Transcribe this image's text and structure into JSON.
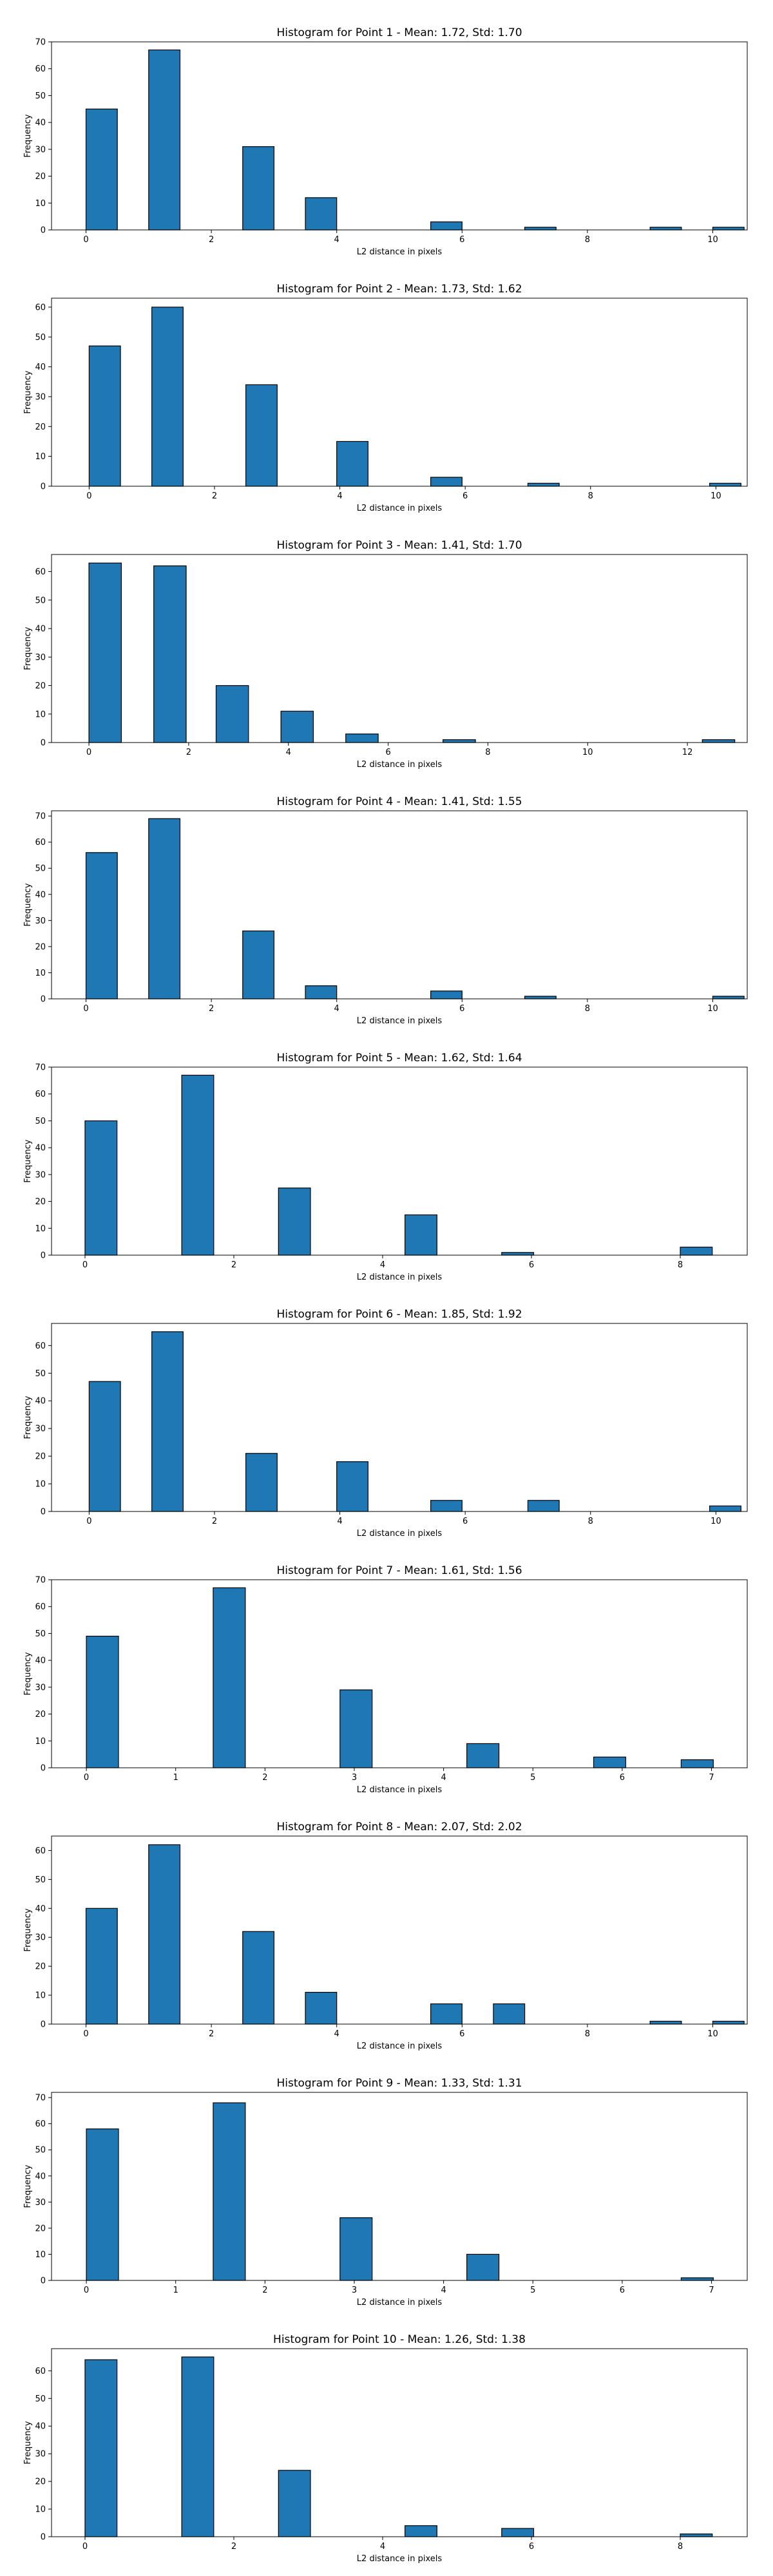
{
  "style": {
    "bar_color": "#1f77b4",
    "edge_color": "#000000",
    "background": "#ffffff"
  },
  "chart_data": [
    {
      "type": "bar",
      "title": "Histogram for Point 1 - Mean: 1.72, Std: 1.70",
      "xlabel": "L2 distance in pixels",
      "ylabel": "Frequency",
      "xlim": [
        -0.55,
        10.55
      ],
      "ylim": [
        0,
        70
      ],
      "xticks": [
        0,
        2,
        4,
        6,
        8,
        10
      ],
      "yticks": [
        0,
        10,
        20,
        30,
        40,
        50,
        60,
        70
      ],
      "grid": false,
      "bars": [
        {
          "x0": 0.0,
          "x1": 0.5,
          "value": 45
        },
        {
          "x0": 1.0,
          "x1": 1.5,
          "value": 67
        },
        {
          "x0": 2.5,
          "x1": 3.0,
          "value": 31
        },
        {
          "x0": 3.5,
          "x1": 4.0,
          "value": 12
        },
        {
          "x0": 5.5,
          "x1": 6.0,
          "value": 3
        },
        {
          "x0": 7.0,
          "x1": 7.5,
          "value": 1
        },
        {
          "x0": 9.0,
          "x1": 9.5,
          "value": 1
        },
        {
          "x0": 10.0,
          "x1": 10.5,
          "value": 1
        }
      ]
    },
    {
      "type": "bar",
      "title": "Histogram for Point 2 - Mean: 1.73, Std: 1.62",
      "xlabel": "L2 distance in pixels",
      "ylabel": "Frequency",
      "xlim": [
        -0.6,
        10.5
      ],
      "ylim": [
        0,
        63
      ],
      "xticks": [
        0,
        2,
        4,
        6,
        8,
        10
      ],
      "yticks": [
        0,
        10,
        20,
        30,
        40,
        50,
        60
      ],
      "grid": false,
      "bars": [
        {
          "x0": 0.0,
          "x1": 0.5,
          "value": 47
        },
        {
          "x0": 1.0,
          "x1": 1.5,
          "value": 60
        },
        {
          "x0": 2.5,
          "x1": 3.0,
          "value": 34
        },
        {
          "x0": 3.95,
          "x1": 4.45,
          "value": 15
        },
        {
          "x0": 5.45,
          "x1": 5.95,
          "value": 3
        },
        {
          "x0": 7.0,
          "x1": 7.5,
          "value": 1
        },
        {
          "x0": 9.9,
          "x1": 10.4,
          "value": 1
        }
      ]
    },
    {
      "type": "bar",
      "title": "Histogram for Point 3 - Mean: 1.41, Std: 1.70",
      "xlabel": "L2 distance in pixels",
      "ylabel": "Frequency",
      "xlim": [
        -0.75,
        13.2
      ],
      "ylim": [
        0,
        66
      ],
      "xticks": [
        0,
        2,
        4,
        6,
        8,
        10,
        12
      ],
      "yticks": [
        0,
        10,
        20,
        30,
        40,
        50,
        60
      ],
      "grid": false,
      "bars": [
        {
          "x0": 0.0,
          "x1": 0.65,
          "value": 63
        },
        {
          "x0": 1.3,
          "x1": 1.95,
          "value": 62
        },
        {
          "x0": 2.55,
          "x1": 3.2,
          "value": 20
        },
        {
          "x0": 3.85,
          "x1": 4.5,
          "value": 11
        },
        {
          "x0": 5.15,
          "x1": 5.8,
          "value": 3
        },
        {
          "x0": 7.1,
          "x1": 7.75,
          "value": 1
        },
        {
          "x0": 12.3,
          "x1": 12.95,
          "value": 1
        }
      ]
    },
    {
      "type": "bar",
      "title": "Histogram for Point 4 - Mean: 1.41, Std: 1.55",
      "xlabel": "L2 distance in pixels",
      "ylabel": "Frequency",
      "xlim": [
        -0.55,
        10.55
      ],
      "ylim": [
        0,
        72
      ],
      "xticks": [
        0,
        2,
        4,
        6,
        8,
        10
      ],
      "yticks": [
        0,
        10,
        20,
        30,
        40,
        50,
        60,
        70
      ],
      "grid": false,
      "bars": [
        {
          "x0": 0.0,
          "x1": 0.5,
          "value": 56
        },
        {
          "x0": 1.0,
          "x1": 1.5,
          "value": 69
        },
        {
          "x0": 2.5,
          "x1": 3.0,
          "value": 26
        },
        {
          "x0": 3.5,
          "x1": 4.0,
          "value": 5
        },
        {
          "x0": 5.5,
          "x1": 6.0,
          "value": 3
        },
        {
          "x0": 7.0,
          "x1": 7.5,
          "value": 1
        },
        {
          "x0": 10.0,
          "x1": 10.5,
          "value": 1
        }
      ]
    },
    {
      "type": "bar",
      "title": "Histogram for Point 5 - Mean: 1.62, Std: 1.64",
      "xlabel": "L2 distance in pixels",
      "ylabel": "Frequency",
      "xlim": [
        -0.45,
        8.9
      ],
      "ylim": [
        0,
        70
      ],
      "xticks": [
        0,
        2,
        4,
        6,
        8
      ],
      "yticks": [
        0,
        10,
        20,
        30,
        40,
        50,
        60,
        70
      ],
      "grid": false,
      "bars": [
        {
          "x0": 0.0,
          "x1": 0.43,
          "value": 50
        },
        {
          "x0": 1.3,
          "x1": 1.73,
          "value": 67
        },
        {
          "x0": 2.6,
          "x1": 3.03,
          "value": 25
        },
        {
          "x0": 4.3,
          "x1": 4.73,
          "value": 15
        },
        {
          "x0": 5.6,
          "x1": 6.03,
          "value": 1
        },
        {
          "x0": 8.0,
          "x1": 8.43,
          "value": 3
        }
      ]
    },
    {
      "type": "bar",
      "title": "Histogram for Point 6 - Mean: 1.85, Std: 1.92",
      "xlabel": "L2 distance in pixels",
      "ylabel": "Frequency",
      "xlim": [
        -0.6,
        10.5
      ],
      "ylim": [
        0,
        68
      ],
      "xticks": [
        0,
        2,
        4,
        6,
        8,
        10
      ],
      "yticks": [
        0,
        10,
        20,
        30,
        40,
        50,
        60
      ],
      "grid": false,
      "bars": [
        {
          "x0": 0.0,
          "x1": 0.5,
          "value": 47
        },
        {
          "x0": 1.0,
          "x1": 1.5,
          "value": 65
        },
        {
          "x0": 2.5,
          "x1": 3.0,
          "value": 21
        },
        {
          "x0": 3.95,
          "x1": 4.45,
          "value": 18
        },
        {
          "x0": 5.45,
          "x1": 5.95,
          "value": 4
        },
        {
          "x0": 7.0,
          "x1": 7.5,
          "value": 4
        },
        {
          "x0": 9.9,
          "x1": 10.4,
          "value": 2
        }
      ]
    },
    {
      "type": "bar",
      "title": "Histogram for Point 7 - Mean: 1.61, Std: 1.56",
      "xlabel": "L2 distance in pixels",
      "ylabel": "Frequency",
      "xlim": [
        -0.39,
        7.4
      ],
      "ylim": [
        0,
        70
      ],
      "xticks": [
        0,
        1,
        2,
        3,
        4,
        5,
        6,
        7
      ],
      "yticks": [
        0,
        10,
        20,
        30,
        40,
        50,
        60,
        70
      ],
      "grid": false,
      "bars": [
        {
          "x0": 0.0,
          "x1": 0.36,
          "value": 49
        },
        {
          "x0": 1.42,
          "x1": 1.78,
          "value": 67
        },
        {
          "x0": 2.84,
          "x1": 3.2,
          "value": 29
        },
        {
          "x0": 4.26,
          "x1": 4.62,
          "value": 9
        },
        {
          "x0": 5.68,
          "x1": 6.04,
          "value": 4
        },
        {
          "x0": 6.66,
          "x1": 7.02,
          "value": 3
        }
      ]
    },
    {
      "type": "bar",
      "title": "Histogram for Point 8 - Mean: 2.07, Std: 2.02",
      "xlabel": "L2 distance in pixels",
      "ylabel": "Frequency",
      "xlim": [
        -0.55,
        10.55
      ],
      "ylim": [
        0,
        65
      ],
      "xticks": [
        0,
        2,
        4,
        6,
        8,
        10
      ],
      "yticks": [
        0,
        10,
        20,
        30,
        40,
        50,
        60
      ],
      "grid": false,
      "bars": [
        {
          "x0": 0.0,
          "x1": 0.5,
          "value": 40
        },
        {
          "x0": 1.0,
          "x1": 1.5,
          "value": 62
        },
        {
          "x0": 2.5,
          "x1": 3.0,
          "value": 32
        },
        {
          "x0": 3.5,
          "x1": 4.0,
          "value": 11
        },
        {
          "x0": 5.5,
          "x1": 6.0,
          "value": 7
        },
        {
          "x0": 6.5,
          "x1": 7.0,
          "value": 7
        },
        {
          "x0": 9.0,
          "x1": 9.5,
          "value": 1
        },
        {
          "x0": 10.0,
          "x1": 10.5,
          "value": 1
        }
      ]
    },
    {
      "type": "bar",
      "title": "Histogram for Point 9 - Mean: 1.33, Std: 1.31",
      "xlabel": "L2 distance in pixels",
      "ylabel": "Frequency",
      "xlim": [
        -0.39,
        7.4
      ],
      "ylim": [
        0,
        72
      ],
      "xticks": [
        0,
        1,
        2,
        3,
        4,
        5,
        6,
        7
      ],
      "yticks": [
        0,
        10,
        20,
        30,
        40,
        50,
        60,
        70
      ],
      "grid": false,
      "bars": [
        {
          "x0": 0.0,
          "x1": 0.36,
          "value": 58
        },
        {
          "x0": 1.42,
          "x1": 1.78,
          "value": 68
        },
        {
          "x0": 2.84,
          "x1": 3.2,
          "value": 24
        },
        {
          "x0": 4.26,
          "x1": 4.62,
          "value": 10
        },
        {
          "x0": 6.66,
          "x1": 7.02,
          "value": 1
        }
      ]
    },
    {
      "type": "bar",
      "title": "Histogram for Point 10 - Mean: 1.26, Std: 1.38",
      "xlabel": "L2 distance in pixels",
      "ylabel": "Frequency",
      "xlim": [
        -0.45,
        8.9
      ],
      "ylim": [
        0,
        68
      ],
      "xticks": [
        0,
        2,
        4,
        6,
        8
      ],
      "yticks": [
        0,
        10,
        20,
        30,
        40,
        50,
        60
      ],
      "grid": false,
      "bars": [
        {
          "x0": 0.0,
          "x1": 0.43,
          "value": 64
        },
        {
          "x0": 1.3,
          "x1": 1.73,
          "value": 65
        },
        {
          "x0": 2.6,
          "x1": 3.03,
          "value": 24
        },
        {
          "x0": 4.3,
          "x1": 4.73,
          "value": 4
        },
        {
          "x0": 5.6,
          "x1": 6.03,
          "value": 3
        },
        {
          "x0": 8.0,
          "x1": 8.43,
          "value": 1
        }
      ]
    }
  ]
}
